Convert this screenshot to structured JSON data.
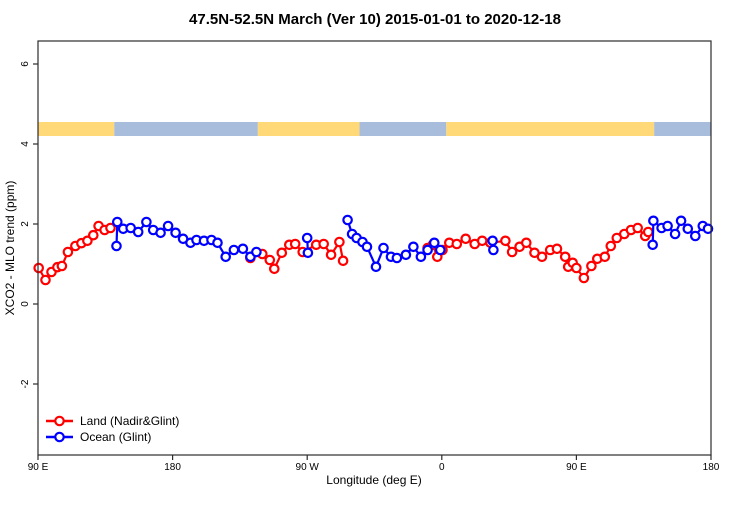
{
  "title": "47.5N-52.5N March (Ver 10)   2015-01-01 to 2020-12-18",
  "chart_data": {
    "type": "line",
    "title": "47.5N-52.5N March (Ver 10)   2015-01-01 to 2020-12-18",
    "xlabel": "Longitude (deg E)",
    "ylabel": "XCO2 - MLO trend (ppm)",
    "legend_position": "bottom-left-inside",
    "grid": false,
    "x_axis": {
      "note": "axis runs eastward from 90E, wrapping the dateline, units deg",
      "range": [
        90,
        540
      ],
      "ticks": [
        {
          "pos": 90,
          "label": "90 E"
        },
        {
          "pos": 180,
          "label": "180"
        },
        {
          "pos": 270,
          "label": "90 W"
        },
        {
          "pos": 360,
          "label": "0"
        },
        {
          "pos": 450,
          "label": "90 E"
        },
        {
          "pos": 540,
          "label": "180"
        }
      ]
    },
    "y_axis": {
      "range": [
        -3.8,
        6.6
      ],
      "ticks": [
        {
          "pos": -2,
          "label": "-2"
        },
        {
          "pos": 0,
          "label": "0"
        },
        {
          "pos": 2,
          "label": "2"
        },
        {
          "pos": 4,
          "label": "4"
        },
        {
          "pos": 6,
          "label": "6"
        }
      ]
    },
    "surface_band": {
      "y_span": [
        4.2,
        4.55
      ],
      "land_color": "#FFD878",
      "ocean_color": "#A8BCDC",
      "segments": [
        {
          "from": 90,
          "to": 141,
          "surface": "land"
        },
        {
          "from": 141,
          "to": 237,
          "surface": "ocean"
        },
        {
          "from": 237,
          "to": 305,
          "surface": "land"
        },
        {
          "from": 305,
          "to": 363,
          "surface": "ocean"
        },
        {
          "from": 363,
          "to": 502,
          "surface": "land"
        },
        {
          "from": 502,
          "to": 540,
          "surface": "ocean"
        }
      ]
    },
    "series": [
      {
        "name": "Land (Nadir&Glint)",
        "color": "#FF0000",
        "marker": "open-circle",
        "segments": [
          [
            [
              90.5,
              0.9
            ],
            [
              95,
              0.6
            ],
            [
              99,
              0.8
            ],
            [
              103,
              0.92
            ],
            [
              106,
              0.95
            ],
            [
              110,
              1.3
            ],
            [
              115,
              1.45
            ],
            [
              119,
              1.52
            ],
            [
              123,
              1.58
            ],
            [
              127,
              1.72
            ],
            [
              130.5,
              1.95
            ],
            [
              134.5,
              1.85
            ],
            [
              138.5,
              1.9
            ]
          ],
          [
            [
              232,
              1.15
            ],
            [
              240,
              1.25
            ],
            [
              245,
              1.1
            ],
            [
              248,
              0.88
            ],
            [
              253,
              1.28
            ],
            [
              258,
              1.48
            ],
            [
              262,
              1.5
            ],
            [
              267,
              1.3
            ],
            [
              276,
              1.48
            ],
            [
              281,
              1.5
            ],
            [
              286,
              1.23
            ],
            [
              291.5,
              1.55
            ],
            [
              294,
              1.08
            ]
          ],
          [
            [
              350.5,
              1.4
            ],
            [
              354,
              1.48
            ],
            [
              357,
              1.18
            ],
            [
              360.5,
              1.35
            ],
            [
              365,
              1.53
            ],
            [
              370,
              1.5
            ],
            [
              376,
              1.63
            ],
            [
              382,
              1.5
            ],
            [
              387,
              1.58
            ],
            [
              392.5,
              1.53
            ],
            [
              402.5,
              1.58
            ],
            [
              407,
              1.3
            ],
            [
              412,
              1.43
            ],
            [
              416.5,
              1.53
            ],
            [
              422,
              1.28
            ],
            [
              427,
              1.18
            ],
            [
              432.5,
              1.35
            ],
            [
              437,
              1.38
            ],
            [
              442.5,
              1.18
            ],
            [
              444.5,
              0.93
            ],
            [
              447.5,
              1.03
            ],
            [
              450,
              0.9
            ],
            [
              455,
              0.65
            ],
            [
              460,
              0.95
            ],
            [
              464,
              1.13
            ],
            [
              469,
              1.18
            ],
            [
              473,
              1.45
            ],
            [
              477,
              1.65
            ],
            [
              482,
              1.75
            ],
            [
              486.5,
              1.85
            ],
            [
              491,
              1.9
            ],
            [
              496,
              1.7
            ],
            [
              498,
              1.8
            ]
          ]
        ]
      },
      {
        "name": "Ocean (Glint)",
        "color": "#0000FF",
        "marker": "open-circle",
        "segments": [
          [
            [
              142.5,
              1.45
            ],
            [
              143,
              2.05
            ],
            [
              147,
              1.88
            ],
            [
              152,
              1.9
            ],
            [
              157,
              1.8
            ],
            [
              162.5,
              2.05
            ],
            [
              167,
              1.85
            ],
            [
              172,
              1.78
            ],
            [
              177,
              1.95
            ],
            [
              182,
              1.78
            ],
            [
              187,
              1.63
            ],
            [
              192,
              1.53
            ],
            [
              196,
              1.6
            ],
            [
              201,
              1.58
            ],
            [
              206,
              1.6
            ],
            [
              210,
              1.53
            ],
            [
              215.5,
              1.18
            ],
            [
              221,
              1.35
            ],
            [
              227,
              1.38
            ],
            [
              232,
              1.18
            ],
            [
              236,
              1.3
            ]
          ],
          [
            [
              270,
              1.65
            ],
            [
              270.5,
              1.28
            ]
          ],
          [
            [
              297,
              2.1
            ],
            [
              300,
              1.75
            ],
            [
              303,
              1.65
            ],
            [
              307,
              1.55
            ],
            [
              310,
              1.43
            ],
            [
              316,
              0.93
            ],
            [
              321,
              1.4
            ],
            [
              326,
              1.18
            ],
            [
              330,
              1.15
            ],
            [
              336,
              1.23
            ],
            [
              341,
              1.43
            ],
            [
              346,
              1.18
            ],
            [
              350.5,
              1.35
            ],
            [
              355,
              1.53
            ],
            [
              359,
              1.35
            ]
          ],
          [
            [
              394,
              1.58
            ],
            [
              394.5,
              1.35
            ]
          ],
          [
            [
              501,
              1.48
            ],
            [
              501.5,
              2.08
            ],
            [
              507,
              1.9
            ],
            [
              511,
              1.95
            ],
            [
              516,
              1.75
            ],
            [
              520,
              2.08
            ],
            [
              524.5,
              1.88
            ],
            [
              529.5,
              1.7
            ],
            [
              534.5,
              1.95
            ],
            [
              538,
              1.88
            ]
          ]
        ]
      }
    ]
  }
}
